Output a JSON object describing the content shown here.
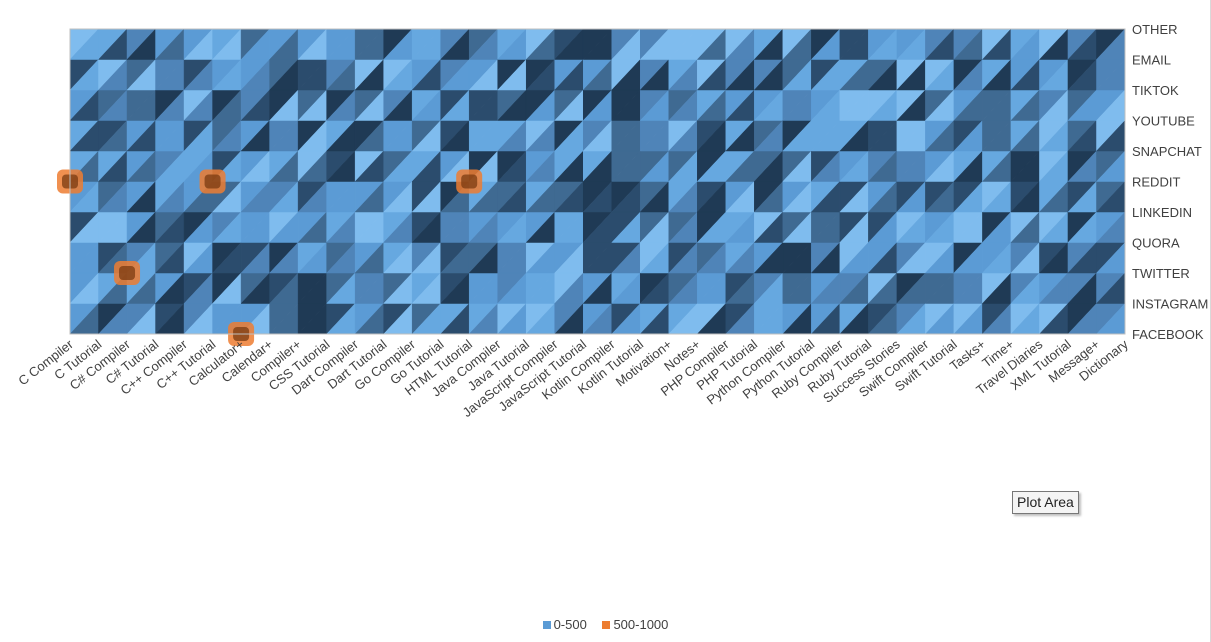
{
  "chart_data": {
    "type": "heatmap",
    "title": "",
    "xlabel": "",
    "ylabel": "",
    "rendering": "3-D surface (top view), triangulated",
    "categories": [
      "C Compiler",
      "C Tutorial",
      "C# Compiler",
      "C# Tutorial",
      "C++ Compiler",
      "C++ Tutorial",
      "Calculator+",
      "Calendar+",
      "Compiler+",
      "CSS Tutorial",
      "Dart Compiler",
      "Dart Tutorial",
      "Go Compiler",
      "Go Tutorial",
      "HTML Tutorial",
      "Java Compiler",
      "Java Tutorial",
      "JavaScript Compiler",
      "JavaScript Tutorial",
      "Kotlin Compiler",
      "Kotlin Tutorial",
      "Motivation+",
      "Notes+",
      "PHP Compiler",
      "PHP Tutorial",
      "Python Compiler",
      "Python Tutorial",
      "Ruby Compiler",
      "Ruby Tutorial",
      "Success Stories",
      "Swift Compiler",
      "Swift Tutorial",
      "Tasks+",
      "Time+",
      "Travel Diaries",
      "XML Tutorial",
      "Message+",
      "Dictionary"
    ],
    "series_axis": [
      "FACEBOOK",
      "INSTAGRAM",
      "TWITTER",
      "QUORA",
      "LINKEDIN",
      "REDDIT",
      "SNAPCHAT",
      "YOUTUBE",
      "TIKTOK",
      "EMAIL",
      "OTHER"
    ],
    "legend": [
      {
        "name": "0-500",
        "color": "#5b9bd5"
      },
      {
        "name": "500-1000",
        "color": "#ed7d31"
      }
    ],
    "legend_position": "bottom",
    "value_range": [
      0,
      1000
    ],
    "colors": {
      "low": "#5b9bd5",
      "high": "#ed7d31",
      "dark": "#1f3a55"
    },
    "highlights": [
      {
        "x": "C Compiler",
        "y": "REDDIT",
        "band": "500-1000"
      },
      {
        "x": "C++ Tutorial",
        "y": "REDDIT",
        "band": "500-1000"
      },
      {
        "x": "HTML Tutorial",
        "y": "REDDIT",
        "band": "500-1000"
      },
      {
        "x": "C# Compiler",
        "y": "TWITTER",
        "band": "500-1000"
      },
      {
        "x": "Calculator+",
        "y": "FACEBOOK",
        "band": "500-1000"
      }
    ]
  },
  "tooltip": {
    "label": "Plot Area"
  }
}
